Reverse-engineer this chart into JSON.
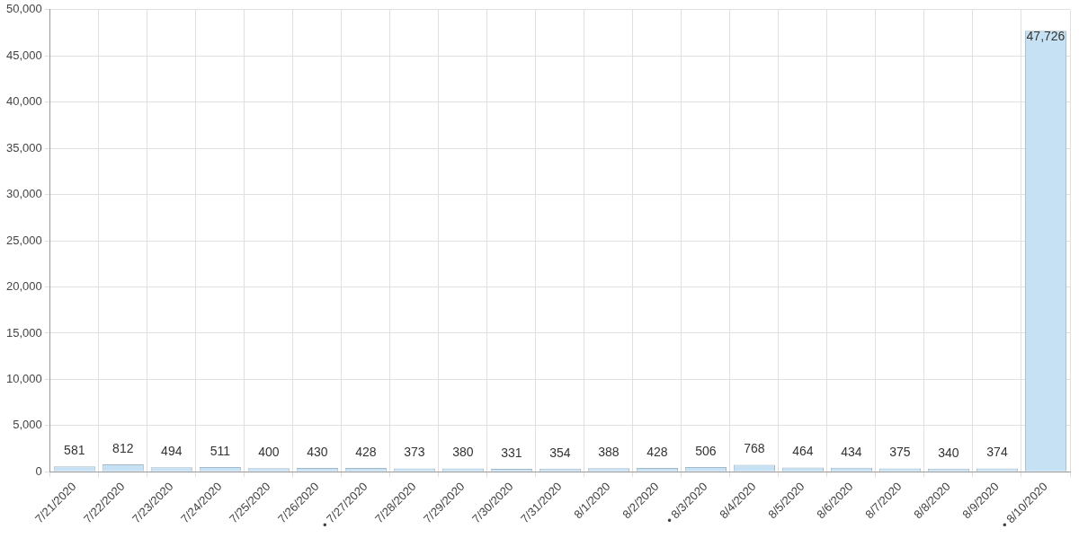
{
  "chart_data": {
    "type": "bar",
    "categories": [
      "7/21/2020",
      "7/22/2020",
      "7/23/2020",
      "7/24/2020",
      "7/25/2020",
      "7/26/2020",
      "• 7/27/2020",
      "7/28/2020",
      "7/29/2020",
      "7/30/2020",
      "7/31/2020",
      "8/1/2020",
      "8/2/2020",
      "• 8/3/2020",
      "8/4/2020",
      "8/5/2020",
      "8/6/2020",
      "8/7/2020",
      "8/8/2020",
      "8/9/2020",
      "• 8/10/2020"
    ],
    "values": [
      581,
      812,
      494,
      511,
      400,
      430,
      428,
      373,
      380,
      331,
      354,
      388,
      428,
      506,
      768,
      464,
      434,
      375,
      340,
      374,
      47726
    ],
    "value_labels": [
      "581",
      "812",
      "494",
      "511",
      "400",
      "430",
      "428",
      "373",
      "380",
      "331",
      "354",
      "388",
      "428",
      "506",
      "768",
      "464",
      "434",
      "375",
      "340",
      "374",
      "47,726"
    ],
    "color": "#c6e1f3",
    "ylim": [
      0,
      50000
    ],
    "yticks": [
      {
        "value": 0,
        "label": "0"
      },
      {
        "value": 5000,
        "label": "5,000"
      },
      {
        "value": 10000,
        "label": "10,000"
      },
      {
        "value": 15000,
        "label": "15,000"
      },
      {
        "value": 20000,
        "label": "20,000"
      },
      {
        "value": 25000,
        "label": "25,000"
      },
      {
        "value": 30000,
        "label": "30,000"
      },
      {
        "value": 35000,
        "label": "35,000"
      },
      {
        "value": 40000,
        "label": "40,000"
      },
      {
        "value": 45000,
        "label": "45,000"
      },
      {
        "value": 50000,
        "label": "50,000"
      }
    ],
    "grid": true
  }
}
